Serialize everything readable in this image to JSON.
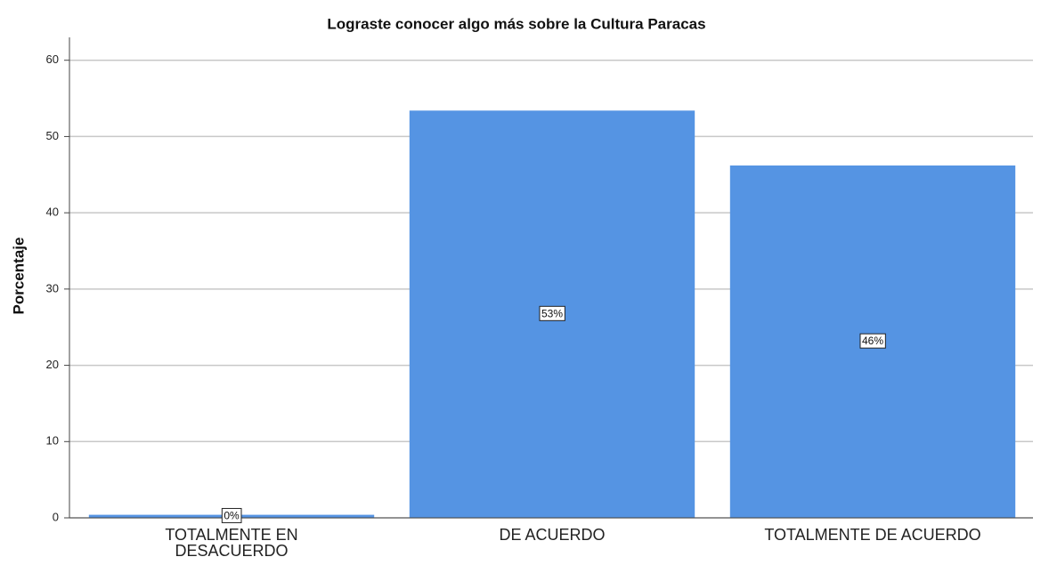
{
  "chart_data": {
    "type": "bar",
    "title": "Lograste conocer algo más  sobre la Cultura Paracas",
    "y_label": "Porcentaje",
    "categories": [
      "TOTALMENTE EN DESACUERDO",
      "DE ACUERDO",
      "TOTALMENTE DE ACUERDO"
    ],
    "values": [
      0.4,
      53.4,
      46.2
    ],
    "value_labels": [
      "0%",
      "53%",
      "46%"
    ],
    "color": "#5594e3",
    "ylim": [
      0,
      63
    ],
    "yticks": [
      0,
      10,
      20,
      30,
      40,
      50,
      60
    ],
    "grid": true
  }
}
